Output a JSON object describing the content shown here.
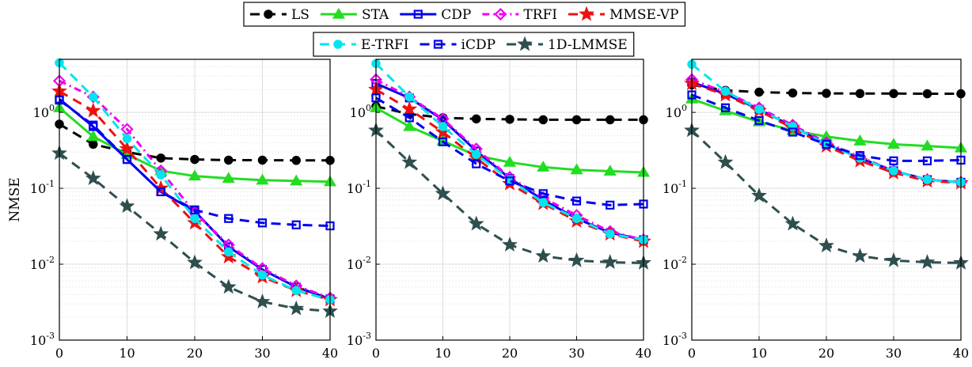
{
  "legend": {
    "row1": [
      "LS",
      "STA",
      "CDP",
      "TRFI",
      "MMSE-VP"
    ],
    "row2": [
      "E-TRFI",
      "iCDP",
      "1D-LMMSE"
    ]
  },
  "styles": {
    "LS": {
      "color": "#000000",
      "dash": "12,8",
      "marker": "circle-filled"
    },
    "STA": {
      "color": "#22dd22",
      "dash": "",
      "marker": "triangle-filled"
    },
    "CDP": {
      "color": "#0000ee",
      "dash": "",
      "marker": "square-open"
    },
    "TRFI": {
      "color": "#ee00ee",
      "dash": "9,5,2,5",
      "marker": "diamond-open"
    },
    "MMSE-VP": {
      "color": "#ee1111",
      "dash": "12,8",
      "marker": "star-filled"
    },
    "E-TRFI": {
      "color": "#00e5ee",
      "dash": "12,8",
      "marker": "circle-filled"
    },
    "iCDP": {
      "color": "#0000ee",
      "dash": "12,8",
      "marker": "square-open"
    },
    "1D-LMMSE": {
      "color": "#2f4f4f",
      "dash": "12,8",
      "marker": "star-filled"
    }
  },
  "chart_data": [
    {
      "type": "line",
      "ylabel": "NMSE",
      "yscale": "log",
      "ylim": [
        0.001,
        5
      ],
      "xlim": [
        0,
        40
      ],
      "xticks": [
        "0",
        "10",
        "20",
        "30",
        "40"
      ],
      "yticks": [
        "10^-3",
        "10^-2",
        "10^-1",
        "10^0"
      ],
      "grid": true,
      "x": [
        0,
        5,
        10,
        15,
        20,
        25,
        30,
        35,
        40
      ],
      "series": [
        {
          "name": "LS",
          "values": [
            0.7,
            0.38,
            0.3,
            0.25,
            0.24,
            0.235,
            0.235,
            0.233,
            0.233
          ]
        },
        {
          "name": "STA",
          "values": [
            1.15,
            0.48,
            0.28,
            0.17,
            0.145,
            0.135,
            0.128,
            0.125,
            0.122
          ]
        },
        {
          "name": "CDP",
          "values": [
            1.5,
            0.65,
            0.24,
            0.09,
            0.05,
            0.017,
            0.0085,
            0.005,
            0.0035
          ]
        },
        {
          "name": "TRFI",
          "values": [
            2.6,
            1.6,
            0.6,
            0.17,
            0.048,
            0.018,
            0.0088,
            0.0052,
            0.0036
          ]
        },
        {
          "name": "MMSE-VP",
          "values": [
            1.9,
            1.05,
            0.33,
            0.1,
            0.035,
            0.0125,
            0.0068,
            0.0045,
            0.0034
          ]
        },
        {
          "name": "E-TRFI",
          "values": [
            4.5,
            1.6,
            0.45,
            0.15,
            0.04,
            0.0145,
            0.0072,
            0.0045,
            0.0034
          ]
        },
        {
          "name": "iCDP",
          "values": [
            1.45,
            0.68,
            0.24,
            0.09,
            0.052,
            0.04,
            0.035,
            0.033,
            0.032
          ]
        },
        {
          "name": "1D-LMMSE",
          "values": [
            0.29,
            0.135,
            0.058,
            0.025,
            0.0105,
            0.005,
            0.0032,
            0.0026,
            0.0024
          ]
        }
      ]
    },
    {
      "type": "line",
      "yscale": "log",
      "ylim": [
        0.001,
        5
      ],
      "xlim": [
        0,
        40
      ],
      "xticks": [
        "0",
        "10",
        "20",
        "30",
        "40"
      ],
      "yticks": [
        "10^-3",
        "10^-2",
        "10^-1",
        "10^0"
      ],
      "grid": true,
      "x": [
        0,
        5,
        10,
        15,
        20,
        25,
        30,
        35,
        40
      ],
      "series": [
        {
          "name": "LS",
          "values": [
            1.2,
            0.95,
            0.85,
            0.82,
            0.81,
            0.8,
            0.8,
            0.8,
            0.8
          ]
        },
        {
          "name": "STA",
          "values": [
            1.15,
            0.65,
            0.42,
            0.27,
            0.22,
            0.19,
            0.175,
            0.168,
            0.162
          ]
        },
        {
          "name": "CDP",
          "values": [
            2.4,
            1.55,
            0.8,
            0.31,
            0.135,
            0.07,
            0.04,
            0.026,
            0.021
          ]
        },
        {
          "name": "TRFI",
          "values": [
            2.7,
            1.6,
            0.82,
            0.33,
            0.14,
            0.075,
            0.044,
            0.027,
            0.021
          ]
        },
        {
          "name": "MMSE-VP",
          "values": [
            2.0,
            1.1,
            0.55,
            0.25,
            0.115,
            0.063,
            0.037,
            0.025,
            0.02
          ]
        },
        {
          "name": "E-TRFI",
          "values": [
            4.4,
            1.6,
            0.65,
            0.28,
            0.13,
            0.065,
            0.04,
            0.025,
            0.021
          ]
        },
        {
          "name": "iCDP",
          "values": [
            1.55,
            0.85,
            0.41,
            0.21,
            0.125,
            0.085,
            0.068,
            0.06,
            0.062
          ]
        },
        {
          "name": "1D-LMMSE",
          "values": [
            0.58,
            0.22,
            0.085,
            0.034,
            0.018,
            0.0128,
            0.0112,
            0.0106,
            0.0104
          ]
        }
      ]
    },
    {
      "type": "line",
      "yscale": "log",
      "ylim": [
        0.001,
        5
      ],
      "xlim": [
        0,
        40
      ],
      "xticks": [
        "0",
        "10",
        "20",
        "30",
        "40"
      ],
      "yticks": [
        "10^-3",
        "10^-2",
        "10^-1",
        "10^0"
      ],
      "grid": true,
      "x": [
        0,
        5,
        10,
        15,
        20,
        25,
        30,
        35,
        40
      ],
      "series": [
        {
          "name": "LS",
          "values": [
            2.3,
            1.95,
            1.85,
            1.8,
            1.78,
            1.77,
            1.77,
            1.76,
            1.76
          ]
        },
        {
          "name": "STA",
          "values": [
            1.5,
            1.05,
            0.75,
            0.58,
            0.48,
            0.42,
            0.38,
            0.36,
            0.34
          ]
        },
        {
          "name": "CDP",
          "values": [
            2.5,
            1.75,
            1.1,
            0.65,
            0.38,
            0.25,
            0.17,
            0.13,
            0.12
          ]
        },
        {
          "name": "TRFI",
          "values": [
            2.7,
            1.85,
            1.15,
            0.68,
            0.4,
            0.26,
            0.17,
            0.13,
            0.12
          ]
        },
        {
          "name": "MMSE-VP",
          "values": [
            2.4,
            1.7,
            1.05,
            0.62,
            0.36,
            0.23,
            0.16,
            0.125,
            0.118
          ]
        },
        {
          "name": "E-TRFI",
          "values": [
            4.3,
            1.9,
            1.1,
            0.65,
            0.38,
            0.25,
            0.17,
            0.13,
            0.12
          ]
        },
        {
          "name": "iCDP",
          "values": [
            1.7,
            1.15,
            0.78,
            0.55,
            0.38,
            0.27,
            0.23,
            0.23,
            0.235
          ]
        },
        {
          "name": "1D-LMMSE",
          "values": [
            0.58,
            0.22,
            0.08,
            0.034,
            0.0175,
            0.0128,
            0.0112,
            0.0106,
            0.0104
          ]
        }
      ]
    }
  ]
}
